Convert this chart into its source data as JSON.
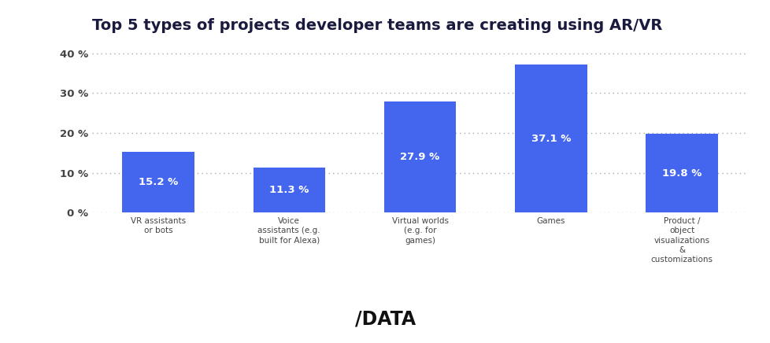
{
  "title": "Top 5 types of projects developer teams are creating using AR/VR",
  "categories": [
    "VR assistants\nor bots",
    "Voice\nassistants (e.g.\nbuilt for Alexa)",
    "Virtual worlds\n(e.g. for\ngames)",
    "Games",
    "Product /\nobject\nvisualizations\n&\ncustomizations"
  ],
  "values": [
    15.2,
    11.3,
    27.9,
    37.1,
    19.8
  ],
  "bar_color": "#4466ee",
  "bar_labels": [
    "15.2 %",
    "11.3 %",
    "27.9 %",
    "37.1 %",
    "19.8 %"
  ],
  "ylabel_ticks": [
    0,
    10,
    20,
    30,
    40
  ],
  "ylim": [
    0,
    43
  ],
  "background_color": "#ffffff",
  "title_fontsize": 14,
  "title_color": "#1a1a3e",
  "tick_label_color": "#444444",
  "bar_label_color": "#ffffff",
  "watermark": "/DATA",
  "grid_color": "#aaaaaa"
}
